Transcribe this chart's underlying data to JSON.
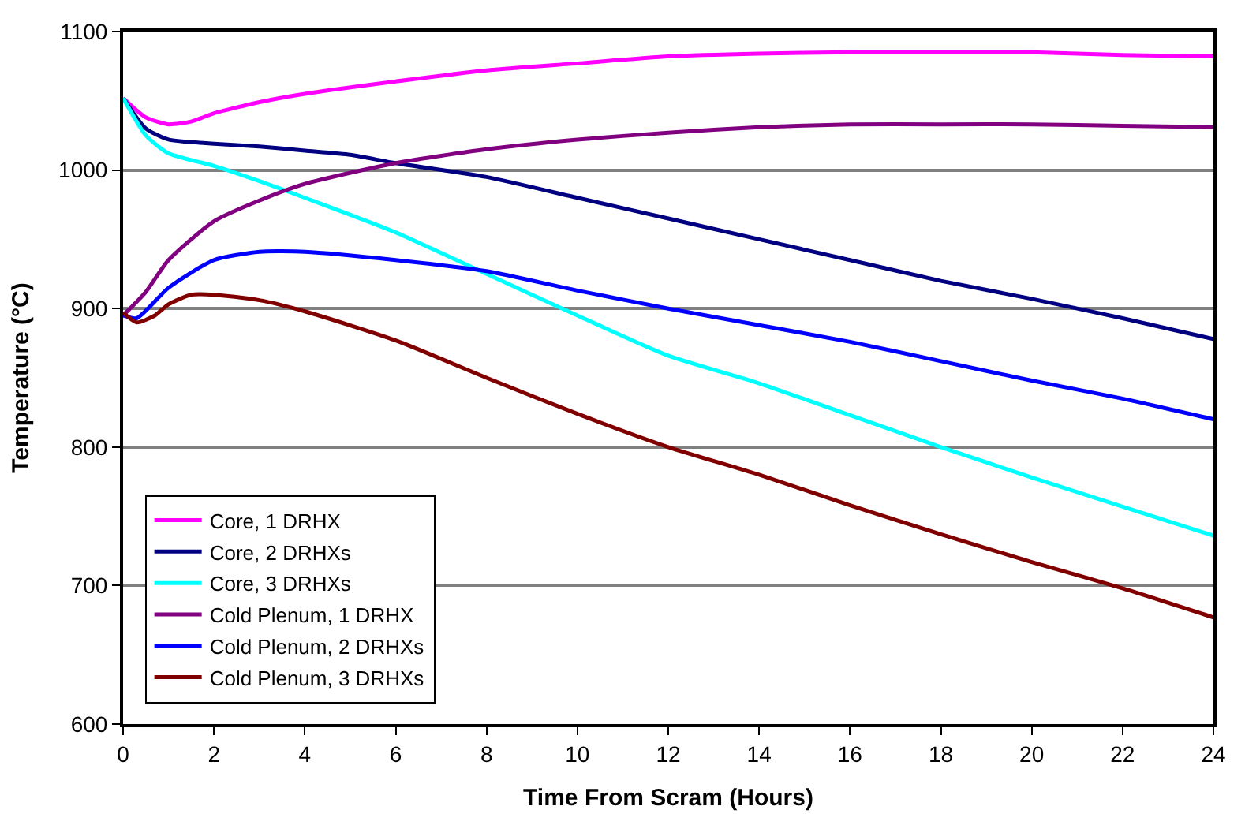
{
  "chart_data": {
    "type": "line",
    "xlabel": "Time From Scram (Hours)",
    "ylabel": "Temperature (°C)",
    "xlim": [
      0,
      24
    ],
    "xticks": [
      0,
      2,
      4,
      6,
      8,
      10,
      12,
      14,
      16,
      18,
      20,
      22,
      24
    ],
    "ylim": [
      600,
      1100
    ],
    "yticks": [
      600,
      700,
      800,
      900,
      1000,
      1100
    ],
    "grid": "y",
    "legend": "bottom left",
    "marker": "none",
    "line_style": "solid",
    "series": [
      {
        "name": "Core, 1 DRHX",
        "color": "#ff00ff",
        "x": [
          0,
          0.5,
          1,
          1.5,
          2,
          3,
          4,
          6,
          8,
          10,
          12,
          14,
          16,
          18,
          20,
          22,
          24
        ],
        "values": [
          1052,
          1038,
          1033,
          1035,
          1041,
          1049,
          1055,
          1064,
          1072,
          1077,
          1082,
          1084,
          1085,
          1085,
          1085,
          1083,
          1082
        ]
      },
      {
        "name": "Core, 2 DRHXs",
        "color": "#000080",
        "x": [
          0,
          0.5,
          1,
          2,
          3,
          4,
          5,
          6,
          8,
          10,
          12,
          14,
          16,
          18,
          20,
          22,
          24
        ],
        "values": [
          1052,
          1030,
          1022,
          1019,
          1017,
          1014,
          1011,
          1005,
          995,
          980,
          965,
          950,
          935,
          920,
          907,
          893,
          878
        ]
      },
      {
        "name": "Core, 3 DRHXs",
        "color": "#00ffff",
        "x": [
          0,
          0.5,
          1,
          2,
          3,
          4,
          6,
          8,
          10,
          12,
          14,
          16,
          18,
          20,
          22,
          24
        ],
        "values": [
          1052,
          1025,
          1012,
          1003,
          992,
          980,
          955,
          925,
          895,
          866,
          846,
          823,
          800,
          778,
          757,
          736
        ]
      },
      {
        "name": "Cold Plenum, 1 DRHX",
        "color": "#800080",
        "x": [
          0,
          0.5,
          1,
          2,
          3,
          4,
          6,
          8,
          10,
          12,
          14,
          16,
          18,
          20,
          22,
          24
        ],
        "values": [
          895,
          912,
          935,
          963,
          978,
          990,
          1005,
          1015,
          1022,
          1027,
          1031,
          1033,
          1033,
          1033,
          1032,
          1031
        ]
      },
      {
        "name": "Cold Plenum, 2 DRHXs",
        "color": "#0000ff",
        "x": [
          0,
          0.3,
          1,
          2,
          3,
          4,
          6,
          8,
          10,
          12,
          14,
          16,
          18,
          20,
          22,
          24
        ],
        "values": [
          895,
          893,
          915,
          935,
          941,
          941,
          935,
          927,
          913,
          900,
          888,
          876,
          862,
          848,
          835,
          820
        ]
      },
      {
        "name": "Cold Plenum, 3 DRHXs",
        "color": "#800000",
        "x": [
          0,
          0.3,
          0.7,
          1,
          1.5,
          2,
          3,
          4,
          6,
          8,
          10,
          12,
          14,
          16,
          18,
          20,
          22,
          24
        ],
        "values": [
          897,
          890,
          895,
          903,
          910,
          910,
          906,
          898,
          877,
          850,
          824,
          800,
          780,
          758,
          737,
          717,
          698,
          677
        ]
      }
    ]
  }
}
